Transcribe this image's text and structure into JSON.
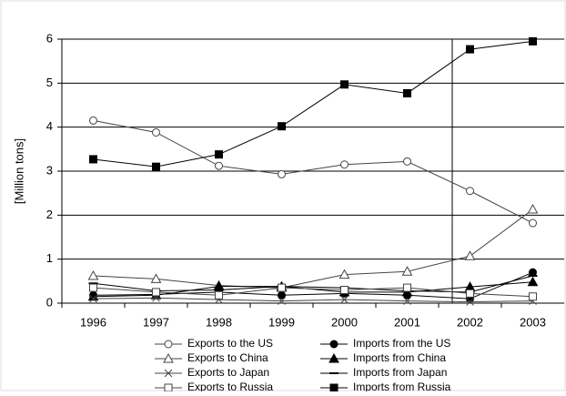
{
  "chart_data": {
    "type": "line",
    "y_label": "[Million tons]",
    "categories": [
      "1996",
      "1997",
      "1998",
      "1999",
      "2000",
      "2001",
      "2002",
      "2003"
    ],
    "ylim": [
      0,
      6
    ],
    "yticks": [
      0,
      1,
      2,
      3,
      4,
      5,
      6
    ],
    "grid": true,
    "series": [
      {
        "name": "Exports to the US",
        "color": "#444444",
        "marker": "circle-open",
        "values": [
          4.15,
          3.88,
          3.12,
          2.93,
          3.15,
          3.22,
          2.55,
          1.82
        ]
      },
      {
        "name": "Imports from the US",
        "color": "#000000",
        "marker": "circle-filled",
        "values": [
          0.18,
          0.2,
          0.25,
          0.18,
          0.22,
          0.18,
          0.1,
          0.7
        ]
      },
      {
        "name": "Exports to China",
        "color": "#444444",
        "marker": "triangle-open",
        "values": [
          0.62,
          0.55,
          0.4,
          0.35,
          0.65,
          0.72,
          1.07,
          2.13
        ]
      },
      {
        "name": "Imports from China",
        "color": "#000000",
        "marker": "triangle-filled",
        "values": [
          0.15,
          0.18,
          0.38,
          0.38,
          0.25,
          0.25,
          0.37,
          0.48
        ]
      },
      {
        "name": "Exports to Japan",
        "color": "#444444",
        "marker": "cross",
        "values": [
          0.1,
          0.12,
          0.08,
          0.05,
          0.08,
          0.05,
          0.03,
          0.05
        ]
      },
      {
        "name": "Imports from Japan",
        "color": "#000000",
        "marker": "dash",
        "values": [
          0.45,
          0.28,
          0.3,
          0.38,
          0.35,
          0.28,
          0.25,
          0.62
        ]
      },
      {
        "name": "Exports to Russia",
        "color": "#444444",
        "marker": "square-open",
        "values": [
          0.35,
          0.25,
          0.18,
          0.35,
          0.3,
          0.35,
          0.22,
          0.15
        ]
      },
      {
        "name": "Imports from Russia",
        "color": "#000000",
        "marker": "square-filled",
        "values": [
          3.27,
          3.1,
          3.38,
          4.02,
          4.97,
          4.77,
          5.77,
          5.95
        ]
      }
    ]
  }
}
